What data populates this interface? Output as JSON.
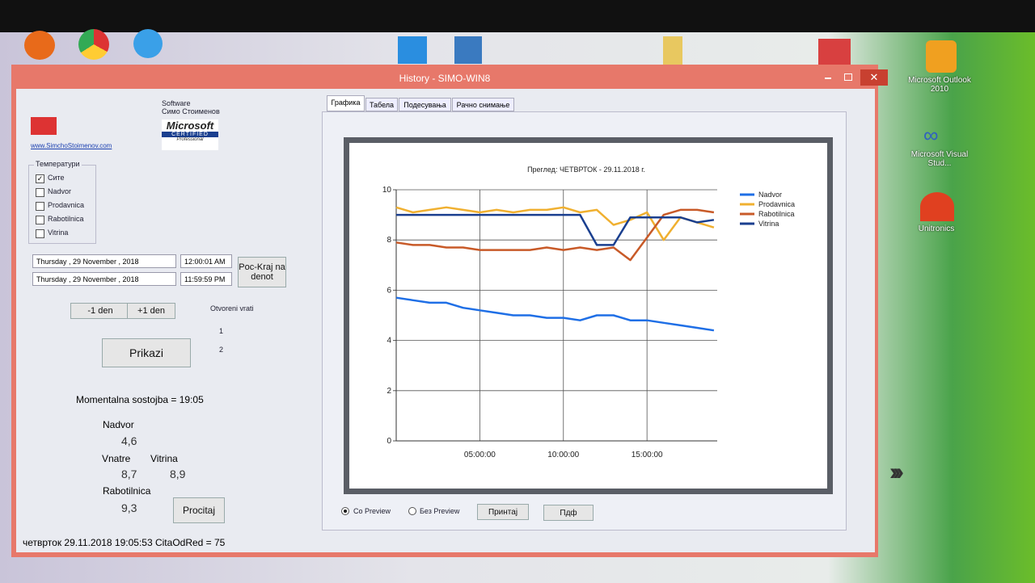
{
  "window": {
    "title": "History - SIMO-WIN8",
    "left_panel": {
      "software": "Software",
      "author": "Симо Стоименов",
      "link": "www.SimchoStoimenov.com",
      "logo": [
        "Microsoft",
        "CERTIFIED",
        "Professional"
      ],
      "group_title": "Температури",
      "checkboxes": [
        {
          "label": "Сите",
          "checked": true
        },
        {
          "label": "Nadvor",
          "checked": false
        },
        {
          "label": "Prodavnica",
          "checked": false
        },
        {
          "label": "Rabotilnica",
          "checked": false
        },
        {
          "label": "Vitrina",
          "checked": false
        }
      ],
      "date_from": "Thursday , 29 November , 2018",
      "time_from": "12:00:01 AM",
      "date_to": "Thursday , 29 November , 2018",
      "time_to": "11:59:59 PM",
      "day_button": "Poc-Kraj na denot",
      "prev_button": "-1 den",
      "next_button": "+1 den",
      "doors_title": "Otvoreni vrati",
      "doors": [
        "1",
        "2"
      ],
      "show_button": "Prikazi",
      "current": "Momentalna sostojba = 19:05",
      "readings": [
        {
          "label": "Nadvor",
          "value": "4,6"
        },
        {
          "label": "Vnatre",
          "value": "8,7"
        },
        {
          "label": "Vitrina",
          "value": "8,9"
        },
        {
          "label": "Rabotilnica",
          "value": "9,3"
        }
      ],
      "read_button": "Procitaj"
    },
    "tabs": [
      "Графика",
      "Табела",
      "Подесувања",
      "Рачно снимање"
    ],
    "options": {
      "radios": [
        {
          "label": "Со Preview",
          "checked": true
        },
        {
          "label": "Без Preview",
          "checked": false
        }
      ],
      "buttons": [
        "Принтај",
        "Пдф"
      ]
    },
    "status_bar": "четврток 29.11.2018 19:05:53  CitaOdRed = 75"
  },
  "desktop": {
    "icons": [
      "Microsoft Outlook 2010",
      "Microsoft Visual Stud...",
      "Unitronics"
    ]
  },
  "chart_data": {
    "type": "line",
    "title": "Преглед: ЧЕТВРТОК - 29.11.2018 г.",
    "x": [
      0,
      1,
      2,
      3,
      4,
      5,
      6,
      7,
      8,
      9,
      10,
      11,
      12,
      13,
      14,
      15,
      16,
      17,
      18,
      19
    ],
    "xlim": [
      0,
      19.2
    ],
    "xticks": [
      {
        "value": 5,
        "label": "05:00:00"
      },
      {
        "value": 10,
        "label": "10:00:00"
      },
      {
        "value": 15,
        "label": "15:00:00"
      }
    ],
    "ylim": [
      0,
      10
    ],
    "yticks": [
      0,
      2,
      4,
      6,
      8,
      10
    ],
    "grid": true,
    "legend": "right",
    "series": [
      {
        "name": "Nadvor",
        "color": "#1f6fe6",
        "values": [
          5.7,
          5.6,
          5.5,
          5.5,
          5.3,
          5.2,
          5.1,
          5.0,
          5.0,
          4.9,
          4.9,
          4.8,
          5.0,
          5.0,
          4.8,
          4.8,
          4.7,
          4.6,
          4.5,
          4.4
        ]
      },
      {
        "name": "Prodavnica",
        "color": "#f0b030",
        "values": [
          9.3,
          9.1,
          9.2,
          9.3,
          9.2,
          9.1,
          9.2,
          9.1,
          9.2,
          9.2,
          9.3,
          9.1,
          9.2,
          8.6,
          8.8,
          9.1,
          8.0,
          8.9,
          8.7,
          8.5
        ]
      },
      {
        "name": "Rabotilnica",
        "color": "#c85a28",
        "values": [
          7.9,
          7.8,
          7.8,
          7.7,
          7.7,
          7.6,
          7.6,
          7.6,
          7.6,
          7.7,
          7.6,
          7.7,
          7.6,
          7.7,
          7.2,
          8.1,
          9.0,
          9.2,
          9.2,
          9.1
        ]
      },
      {
        "name": "Vitrina",
        "color": "#1a3f8f",
        "values": [
          9.0,
          9.0,
          9.0,
          9.0,
          9.0,
          9.0,
          9.0,
          9.0,
          9.0,
          9.0,
          9.0,
          9.0,
          7.8,
          7.8,
          8.9,
          8.9,
          8.9,
          8.9,
          8.7,
          8.8
        ]
      }
    ]
  }
}
